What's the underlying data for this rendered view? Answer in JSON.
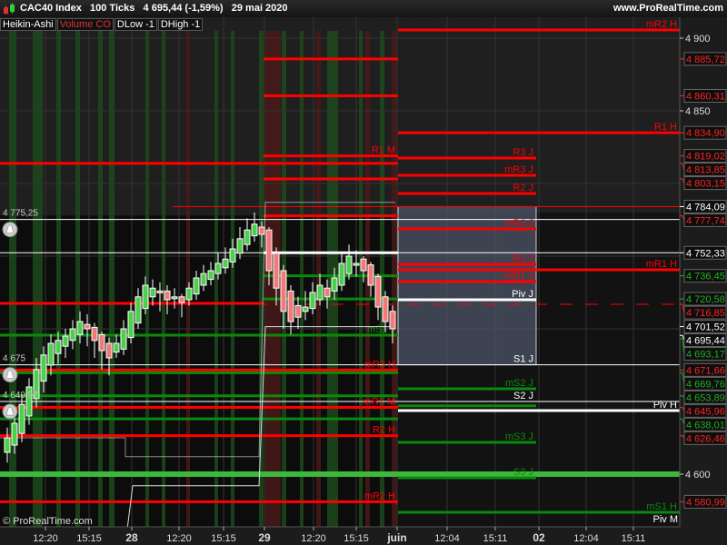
{
  "header": {
    "title": "CAC40 Index   100 Ticks   4 695,44 (-1,59%)   29 mai 2020",
    "site": "www.ProRealTime.com",
    "indicator_tags": [
      {
        "label": "Heikin-Ashi",
        "color": "white"
      },
      {
        "label": "Volume CO",
        "color": "red"
      },
      {
        "label": "DLow -1",
        "color": "white"
      },
      {
        "label": "DHigh -1",
        "color": "white"
      }
    ]
  },
  "copyright": "© ProRealTime.com",
  "colors": {
    "up": "#4cd04c",
    "down": "#f07a7a",
    "red": "#ff0000",
    "green": "#0a8a0a",
    "bright_green": "#3cb83c",
    "white": "#ffffff",
    "zone": "#4a5063"
  },
  "chart_data": {
    "type": "candlestick",
    "style": "Heikin-Ashi",
    "ylim": [
      4560,
      4912
    ],
    "y_ticks": [
      {
        "value": 4900,
        "label": "4 900"
      },
      {
        "value": 4850,
        "label": "4 850"
      },
      {
        "value": 4600,
        "label": "4 600"
      }
    ],
    "x_ticks": [
      {
        "label": "12:20",
        "bold": false
      },
      {
        "label": "15:15",
        "bold": false
      },
      {
        "label": "28",
        "bold": true
      },
      {
        "label": "12:20",
        "bold": false
      },
      {
        "label": "15:15",
        "bold": false
      },
      {
        "label": "29",
        "bold": true
      },
      {
        "label": "12:20",
        "bold": false
      },
      {
        "label": "15:15",
        "bold": false
      },
      {
        "label": "juin",
        "bold": true
      },
      {
        "label": "12:04",
        "bold": false
      },
      {
        "label": "15:11",
        "bold": false
      },
      {
        "label": "02",
        "bold": true
      },
      {
        "label": "12:04",
        "bold": false
      },
      {
        "label": "15:11",
        "bold": false
      }
    ],
    "candles": [
      [
        4615,
        4632,
        4608,
        4625
      ],
      [
        4620,
        4640,
        4614,
        4635
      ],
      [
        4628,
        4655,
        4622,
        4648
      ],
      [
        4640,
        4666,
        4634,
        4660
      ],
      [
        4652,
        4680,
        4646,
        4672
      ],
      [
        4664,
        4688,
        4656,
        4682
      ],
      [
        4675,
        4696,
        4668,
        4690
      ],
      [
        4683,
        4698,
        4676,
        4692
      ],
      [
        4688,
        4700,
        4680,
        4695
      ],
      [
        4692,
        4706,
        4686,
        4700
      ],
      [
        4696,
        4712,
        4690,
        4705
      ],
      [
        4703,
        4710,
        4688,
        4700
      ],
      [
        4701,
        4704,
        4680,
        4692
      ],
      [
        4696,
        4698,
        4672,
        4685
      ],
      [
        4690,
        4694,
        4668,
        4680
      ],
      [
        4684,
        4696,
        4680,
        4690
      ],
      [
        4686,
        4706,
        4682,
        4700
      ],
      [
        4694,
        4718,
        4690,
        4712
      ],
      [
        4704,
        4728,
        4700,
        4722
      ],
      [
        4714,
        4736,
        4710,
        4730
      ],
      [
        4722,
        4734,
        4716,
        4728
      ],
      [
        4726,
        4732,
        4712,
        4725
      ],
      [
        4726,
        4730,
        4710,
        4720
      ],
      [
        4722,
        4728,
        4714,
        4722
      ],
      [
        4722,
        4724,
        4708,
        4718
      ],
      [
        4720,
        4732,
        4716,
        4728
      ],
      [
        4724,
        4740,
        4720,
        4735
      ],
      [
        4730,
        4744,
        4726,
        4738
      ],
      [
        4734,
        4746,
        4730,
        4740
      ],
      [
        4738,
        4752,
        4734,
        4745
      ],
      [
        4742,
        4756,
        4738,
        4748
      ],
      [
        4746,
        4762,
        4742,
        4755
      ],
      [
        4752,
        4770,
        4748,
        4762
      ],
      [
        4758,
        4776,
        4754,
        4768
      ],
      [
        4764,
        4780,
        4760,
        4772
      ],
      [
        4770,
        4774,
        4756,
        4765
      ],
      [
        4768,
        4770,
        4730,
        4740
      ],
      [
        4752,
        4756,
        4716,
        4728
      ],
      [
        4740,
        4744,
        4700,
        4712
      ],
      [
        4726,
        4730,
        4696,
        4705
      ],
      [
        4716,
        4722,
        4700,
        4708
      ],
      [
        4712,
        4726,
        4706,
        4715
      ],
      [
        4714,
        4732,
        4710,
        4725
      ],
      [
        4720,
        4738,
        4716,
        4730
      ],
      [
        4728,
        4734,
        4714,
        4722
      ],
      [
        4726,
        4742,
        4720,
        4735
      ],
      [
        4730,
        4752,
        4726,
        4745
      ],
      [
        4738,
        4758,
        4734,
        4750
      ],
      [
        4744,
        4754,
        4736,
        4745
      ],
      [
        4748,
        4750,
        4732,
        4740
      ],
      [
        4744,
        4746,
        4722,
        4730
      ],
      [
        4736,
        4738,
        4706,
        4715
      ],
      [
        4722,
        4726,
        4698,
        4705
      ],
      [
        4712,
        4716,
        4690,
        4700
      ]
    ],
    "day_zone": {
      "top": 4784.09,
      "bottom": 4675.25
    },
    "levels": [
      {
        "value": 4905.6,
        "span": "fwd",
        "color": "red",
        "width": 3,
        "label": "mR2 H"
      },
      {
        "value": 4885.72,
        "span": "mid",
        "color": "red",
        "width": 3,
        "label": ""
      },
      {
        "value": 4860.31,
        "span": "mid",
        "color": "red",
        "width": 3,
        "label": ""
      },
      {
        "value": 4834.9,
        "span": "fwd",
        "color": "red",
        "width": 3,
        "label": "R1 H"
      },
      {
        "value": 4819.02,
        "span": "mid",
        "color": "red",
        "width": 3,
        "label": "R1 M"
      },
      {
        "value": 4817.5,
        "span": "day",
        "color": "red",
        "width": 3,
        "label": "R3 J"
      },
      {
        "value": 4813.85,
        "span": "hist",
        "color": "red",
        "width": 3,
        "label": ""
      },
      {
        "value": 4805.6,
        "span": "day",
        "color": "red",
        "width": 3,
        "label": "mR3 J"
      },
      {
        "value": 4803.15,
        "span": "mid",
        "color": "red",
        "width": 3,
        "label": ""
      },
      {
        "value": 4793.1,
        "span": "day",
        "color": "red",
        "width": 3,
        "label": "R2 J"
      },
      {
        "value": 4784.09,
        "span": "wide",
        "color": "red",
        "width": 1,
        "label": ""
      },
      {
        "value": 4777.74,
        "span": "mid",
        "color": "red",
        "width": 3,
        "label": ""
      },
      {
        "value": 4775.25,
        "span": "all",
        "color": "white",
        "width": 1,
        "label": ""
      },
      {
        "value": 4768.75,
        "span": "day",
        "color": "red",
        "width": 3,
        "label": "mR2 J"
      },
      {
        "value": 4752.33,
        "span": "all",
        "color": "white",
        "width": 1,
        "label": ""
      },
      {
        "value": 4752.33,
        "span": "mid",
        "color": "white",
        "width": 3,
        "label": ""
      },
      {
        "value": 4744.4,
        "span": "day",
        "color": "red",
        "width": 3,
        "label": "R1 J"
      },
      {
        "value": 4740.6,
        "span": "fwd",
        "color": "red",
        "width": 3,
        "label": "mR1 H"
      },
      {
        "value": 4736.45,
        "span": "mid",
        "color": "green",
        "width": 3,
        "label": ""
      },
      {
        "value": 4732.5,
        "span": "day",
        "color": "red",
        "width": 3,
        "label": "mR1 J"
      },
      {
        "value": 4720.58,
        "span": "mid",
        "color": "green",
        "width": 3,
        "label": ""
      },
      {
        "value": 4720.0,
        "span": "day",
        "color": "white",
        "width": 3,
        "label": "Piv J"
      },
      {
        "value": 4717.5,
        "span": "left",
        "color": "red",
        "width": 3,
        "label": ""
      },
      {
        "value": 4716.85,
        "span": "all",
        "color": "red",
        "width": 1,
        "dashed": true,
        "label": ""
      },
      {
        "value": 4695.6,
        "span": "hist",
        "color": "green",
        "width": 3,
        "label": "mS1 J"
      },
      {
        "value": 4675.25,
        "span": "all",
        "color": "white",
        "width": 1,
        "label": "S1 J"
      },
      {
        "value": 4671.66,
        "span": "hist",
        "color": "red",
        "width": 3,
        "label": "mR3 H"
      },
      {
        "value": 4669.76,
        "span": "hist",
        "color": "green",
        "width": 3,
        "label": ""
      },
      {
        "value": 4658.75,
        "span": "day",
        "color": "green",
        "width": 3,
        "label": "mS2 J"
      },
      {
        "value": 4653.89,
        "span": "hist",
        "color": "green",
        "width": 3,
        "label": ""
      },
      {
        "value": 4649.97,
        "span": "all",
        "color": "white",
        "width": 1,
        "label": "S2 J"
      },
      {
        "value": 4647.0,
        "span": "day",
        "color": "green",
        "width": 3,
        "label": ""
      },
      {
        "value": 4645.96,
        "span": "hist",
        "color": "red",
        "width": 3,
        "label": "mR1 M"
      },
      {
        "value": 4643.75,
        "span": "fwd",
        "color": "white",
        "width": 3,
        "label": "Piv H"
      },
      {
        "value": 4638.01,
        "span": "hist",
        "color": "green",
        "width": 3,
        "label": ""
      },
      {
        "value": 4626.46,
        "span": "hist",
        "color": "red",
        "width": 3,
        "label": "R2 H"
      },
      {
        "value": 4621.9,
        "span": "day",
        "color": "green",
        "width": 3,
        "label": "mS3 J"
      },
      {
        "value": 4600.0,
        "span": "all",
        "color": "bright_green",
        "width": 6,
        "label": ""
      },
      {
        "value": 4597.5,
        "span": "day",
        "color": "green",
        "width": 3,
        "label": "S3 J"
      },
      {
        "value": 4580.99,
        "span": "hist",
        "color": "red",
        "width": 3,
        "label": "mR2 H"
      },
      {
        "value": 4573.75,
        "span": "fwd",
        "color": "green",
        "width": 3,
        "label": "mS1 H"
      },
      {
        "value": 4565.0,
        "span": "none",
        "color": "white",
        "width": 1,
        "label": "Piv M"
      }
    ],
    "price_tags": [
      {
        "value": 4885.72,
        "label": "4 885,72",
        "color": "red"
      },
      {
        "value": 4860.31,
        "label": "4 860,31",
        "color": "red"
      },
      {
        "value": 4834.9,
        "label": "4 834,90",
        "color": "red"
      },
      {
        "value": 4819.02,
        "label": "4 819,02",
        "color": "red"
      },
      {
        "value": 4813.85,
        "label": "4 813,85",
        "color": "red"
      },
      {
        "value": 4803.15,
        "label": "4 803,15",
        "color": "red"
      },
      {
        "value": 4784.09,
        "label": "4 784,09",
        "color": "white"
      },
      {
        "value": 4777.74,
        "label": "4 777,74",
        "color": "red"
      },
      {
        "value": 4752.33,
        "label": "4 752,33",
        "color": "white"
      },
      {
        "value": 4736.45,
        "label": "4 736,45",
        "color": "green"
      },
      {
        "value": 4720.58,
        "label": "4 720,58",
        "color": "green"
      },
      {
        "value": 4716.85,
        "label": "4 716,85",
        "color": "red"
      },
      {
        "value": 4693.17,
        "label": "4 693,17",
        "color": "green"
      },
      {
        "value": 4701.52,
        "label": "4 701,52",
        "color": "white"
      },
      {
        "value": 4695.44,
        "label": "4 695,44",
        "color": "white"
      },
      {
        "value": 4671.66,
        "label": "4 671,66",
        "color": "red"
      },
      {
        "value": 4669.76,
        "label": "4 669,76",
        "color": "green"
      },
      {
        "value": 4653.89,
        "label": "4 653,89",
        "color": "green"
      },
      {
        "value": 4645.96,
        "label": "4 645,96",
        "color": "red"
      },
      {
        "value": 4638.01,
        "label": "4 638,01",
        "color": "green"
      },
      {
        "value": 4626.46,
        "label": "4 626,46",
        "color": "red"
      },
      {
        "value": 4580.99,
        "label": "4 580,99",
        "color": "red"
      }
    ],
    "alarms": [
      {
        "value": 4775.25,
        "label": "4 775,25"
      },
      {
        "value": 4675.25,
        "label": "4 675"
      },
      {
        "value": 4649.97,
        "label": "4 649,97"
      }
    ]
  }
}
